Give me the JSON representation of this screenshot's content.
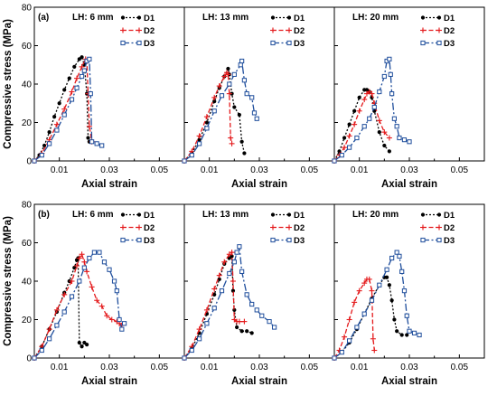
{
  "colors": {
    "D1": "#000000",
    "D2": "#e41a1c",
    "D3": "#1f4e9c"
  },
  "chart_data": [
    {
      "type": "line",
      "row": 0,
      "col": 0,
      "panel_label": "(a)",
      "title": "LH: 6 mm",
      "xlabel": "Axial strain",
      "ylabel": "Compressive stress (MPa)",
      "xlim": [
        0,
        0.06
      ],
      "ylim": [
        0,
        80
      ],
      "xticks": [
        "0.01",
        "0.03",
        "0.05"
      ],
      "yticks": [
        "0",
        "20",
        "40",
        "60",
        "80"
      ],
      "series": [
        {
          "name": "D1",
          "x": [
            0,
            0.002,
            0.004,
            0.006,
            0.008,
            0.01,
            0.012,
            0.014,
            0.016,
            0.018,
            0.019,
            0.02,
            0.021,
            0.0215,
            0.022,
            0.023
          ],
          "y": [
            0,
            3,
            8,
            15,
            23,
            30,
            37,
            43,
            49,
            53,
            54,
            50,
            35,
            12,
            10,
            10
          ]
        },
        {
          "name": "D2",
          "x": [
            0,
            0.003,
            0.006,
            0.009,
            0.012,
            0.015,
            0.017,
            0.019,
            0.0205,
            0.021,
            0.0215,
            0.022,
            0.023
          ],
          "y": [
            0,
            4,
            11,
            19,
            27,
            36,
            43,
            49,
            53,
            52,
            35,
            18,
            10
          ]
        },
        {
          "name": "D3",
          "x": [
            0,
            0.003,
            0.006,
            0.009,
            0.012,
            0.015,
            0.017,
            0.019,
            0.02,
            0.021,
            0.022,
            0.0225,
            0.023,
            0.025,
            0.027
          ],
          "y": [
            0,
            3,
            9,
            16,
            24,
            32,
            38,
            44,
            47,
            52,
            53,
            35,
            10,
            9,
            8
          ]
        }
      ]
    },
    {
      "type": "line",
      "row": 0,
      "col": 1,
      "title": "LH: 13 mm",
      "xlabel": "Axial strain",
      "xlim": [
        0,
        0.06
      ],
      "ylim": [
        0,
        80
      ],
      "xticks": [
        "0.01",
        "0.03",
        "0.05"
      ],
      "series": [
        {
          "name": "D1",
          "x": [
            0,
            0.003,
            0.006,
            0.009,
            0.012,
            0.014,
            0.016,
            0.0175,
            0.018,
            0.019,
            0.02,
            0.022,
            0.023,
            0.024
          ],
          "y": [
            0,
            4,
            11,
            20,
            31,
            38,
            44,
            48,
            45,
            35,
            28,
            24,
            10,
            4
          ]
        },
        {
          "name": "D2",
          "x": [
            0,
            0.003,
            0.006,
            0.009,
            0.012,
            0.014,
            0.016,
            0.017,
            0.0175,
            0.018,
            0.0185,
            0.019
          ],
          "y": [
            0,
            5,
            13,
            23,
            33,
            39,
            44,
            46,
            45,
            35,
            12,
            9
          ]
        },
        {
          "name": "D3",
          "x": [
            0,
            0.003,
            0.006,
            0.009,
            0.012,
            0.015,
            0.018,
            0.02,
            0.0225,
            0.023,
            0.024,
            0.025,
            0.027,
            0.028,
            0.029
          ],
          "y": [
            0,
            3,
            9,
            17,
            26,
            34,
            40,
            45,
            50,
            52,
            42,
            35,
            33,
            25,
            22
          ]
        }
      ]
    },
    {
      "type": "line",
      "row": 0,
      "col": 2,
      "title": "LH: 20 mm",
      "xlabel": "Axial strain",
      "xlim": [
        0,
        0.06
      ],
      "ylim": [
        0,
        80
      ],
      "xticks": [
        "0.01",
        "0.03",
        "0.05"
      ],
      "series": [
        {
          "name": "D1",
          "x": [
            0,
            0.002,
            0.004,
            0.006,
            0.008,
            0.01,
            0.012,
            0.013,
            0.014,
            0.015,
            0.016,
            0.018,
            0.02,
            0.022
          ],
          "y": [
            0,
            5,
            12,
            19,
            26,
            33,
            37,
            37,
            36,
            33,
            26,
            15,
            8,
            5
          ]
        },
        {
          "name": "D2",
          "x": [
            0,
            0.002,
            0.004,
            0.006,
            0.008,
            0.01,
            0.012,
            0.013,
            0.014,
            0.015,
            0.016,
            0.018,
            0.02,
            0.022
          ],
          "y": [
            0,
            3,
            7,
            13,
            19,
            26,
            32,
            35,
            36,
            35,
            30,
            21,
            15,
            12
          ]
        },
        {
          "name": "D3",
          "x": [
            0,
            0.003,
            0.006,
            0.009,
            0.012,
            0.014,
            0.016,
            0.018,
            0.02,
            0.021,
            0.022,
            0.0225,
            0.023,
            0.024,
            0.025,
            0.026,
            0.028,
            0.03
          ],
          "y": [
            0,
            3,
            7,
            12,
            18,
            22,
            28,
            36,
            44,
            52,
            53,
            45,
            35,
            22,
            18,
            12,
            11,
            10
          ]
        }
      ]
    },
    {
      "type": "line",
      "row": 1,
      "col": 0,
      "panel_label": "(b)",
      "title": "LH: 6 mm",
      "xlabel": "Axial strain",
      "ylabel": "Compressive stress (MPa)",
      "xlim": [
        0,
        0.06
      ],
      "ylim": [
        0,
        80
      ],
      "xticks": [
        "0.01",
        "0.03",
        "0.05"
      ],
      "yticks": [
        "0",
        "20",
        "40",
        "60",
        "80"
      ],
      "series": [
        {
          "name": "D1",
          "x": [
            0,
            0.003,
            0.006,
            0.009,
            0.012,
            0.014,
            0.016,
            0.017,
            0.0175,
            0.018,
            0.019,
            0.02,
            0.021
          ],
          "y": [
            0,
            6,
            15,
            24,
            34,
            40,
            47,
            51,
            52,
            8,
            6,
            8,
            7
          ]
        },
        {
          "name": "D2",
          "x": [
            0,
            0.003,
            0.006,
            0.009,
            0.012,
            0.015,
            0.017,
            0.018,
            0.019,
            0.02,
            0.021,
            0.023,
            0.025,
            0.027,
            0.029,
            0.031,
            0.033,
            0.034,
            0.035
          ],
          "y": [
            0,
            6,
            15,
            25,
            33,
            40,
            48,
            52,
            54,
            50,
            45,
            37,
            30,
            27,
            22,
            20,
            19,
            18,
            17
          ]
        },
        {
          "name": "D3",
          "x": [
            0,
            0.003,
            0.006,
            0.009,
            0.012,
            0.015,
            0.018,
            0.02,
            0.022,
            0.024,
            0.026,
            0.028,
            0.03,
            0.032,
            0.033,
            0.034,
            0.035,
            0.036
          ],
          "y": [
            0,
            4,
            10,
            17,
            24,
            32,
            40,
            47,
            52,
            55,
            55,
            50,
            46,
            40,
            35,
            20,
            15,
            18
          ]
        }
      ]
    },
    {
      "type": "line",
      "row": 1,
      "col": 1,
      "title": "LH: 13 mm",
      "xlabel": "Axial strain",
      "xlim": [
        0,
        0.06
      ],
      "ylim": [
        0,
        80
      ],
      "xticks": [
        "0.01",
        "0.03",
        "0.05"
      ],
      "series": [
        {
          "name": "D1",
          "x": [
            0,
            0.003,
            0.006,
            0.009,
            0.012,
            0.014,
            0.016,
            0.018,
            0.019,
            0.0195,
            0.02,
            0.021,
            0.023,
            0.025,
            0.027
          ],
          "y": [
            0,
            5,
            13,
            23,
            33,
            41,
            49,
            52,
            53,
            35,
            25,
            16,
            14,
            14,
            13
          ]
        },
        {
          "name": "D2",
          "x": [
            0,
            0.003,
            0.006,
            0.009,
            0.012,
            0.014,
            0.016,
            0.018,
            0.019,
            0.0195,
            0.02,
            0.021,
            0.022,
            0.024
          ],
          "y": [
            0,
            6,
            15,
            25,
            36,
            43,
            50,
            54,
            55,
            40,
            20,
            19,
            19,
            19
          ]
        },
        {
          "name": "D3",
          "x": [
            0,
            0.003,
            0.006,
            0.009,
            0.012,
            0.015,
            0.018,
            0.02,
            0.021,
            0.022,
            0.023,
            0.025,
            0.027,
            0.029,
            0.031,
            0.034,
            0.036
          ],
          "y": [
            0,
            4,
            10,
            18,
            26,
            35,
            44,
            50,
            55,
            58,
            45,
            33,
            28,
            25,
            22,
            19,
            16
          ]
        }
      ]
    },
    {
      "type": "line",
      "row": 1,
      "col": 2,
      "title": "LH: 20 mm",
      "xlabel": "Axial strain",
      "xlim": [
        0,
        0.06
      ],
      "ylim": [
        0,
        80
      ],
      "xticks": [
        "0.01",
        "0.03",
        "0.05"
      ],
      "series": [
        {
          "name": "D1",
          "x": [
            0,
            0.003,
            0.006,
            0.009,
            0.012,
            0.015,
            0.018,
            0.02,
            0.021,
            0.022,
            0.023,
            0.024,
            0.025,
            0.027,
            0.029
          ],
          "y": [
            0,
            3,
            8,
            15,
            23,
            31,
            38,
            42,
            42,
            38,
            30,
            20,
            14,
            12,
            12
          ]
        },
        {
          "name": "D2",
          "x": [
            0,
            0.002,
            0.004,
            0.006,
            0.008,
            0.01,
            0.012,
            0.013,
            0.014,
            0.015,
            0.0155,
            0.016
          ],
          "y": [
            0,
            4,
            11,
            20,
            29,
            35,
            39,
            41,
            41,
            35,
            10,
            4
          ]
        },
        {
          "name": "D3",
          "x": [
            0,
            0.003,
            0.006,
            0.009,
            0.012,
            0.015,
            0.018,
            0.021,
            0.023,
            0.025,
            0.026,
            0.027,
            0.028,
            0.029,
            0.03,
            0.032,
            0.034
          ],
          "y": [
            0,
            3,
            9,
            16,
            23,
            30,
            38,
            46,
            52,
            55,
            53,
            45,
            35,
            22,
            14,
            13,
            12
          ]
        }
      ]
    }
  ]
}
